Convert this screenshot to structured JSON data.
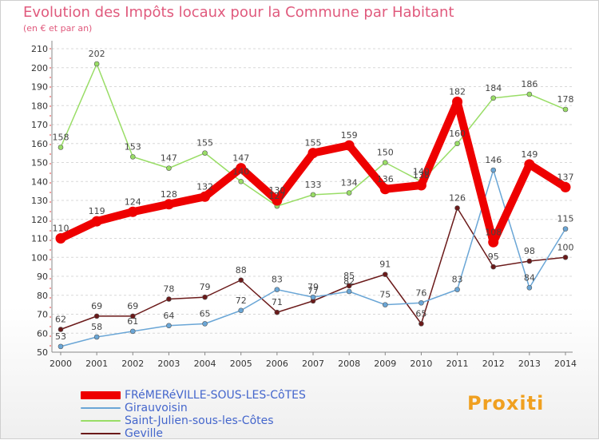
{
  "title": "Evolution des Impôts locaux pour la Commune par Habitant",
  "subtitle": "(en € et par an)",
  "brand": "Proxiti",
  "chart_data": {
    "type": "line",
    "x": [
      2000,
      2001,
      2002,
      2003,
      2004,
      2005,
      2006,
      2007,
      2008,
      2009,
      2010,
      2011,
      2012,
      2013,
      2014
    ],
    "xlabel": "",
    "ylabel": "",
    "ylim": [
      50,
      210
    ],
    "yticks": [
      50,
      60,
      70,
      80,
      90,
      100,
      110,
      120,
      130,
      140,
      150,
      160,
      170,
      180,
      190,
      200,
      210
    ],
    "grid": "horizontal dashed",
    "legend_position": "bottom",
    "series": [
      {
        "name": "FRéMERéVILLE-SOUS-LES-CôTES",
        "color": "#ee0000",
        "width": 10,
        "values": [
          110,
          119,
          124,
          128,
          132,
          147,
          130,
          155,
          159,
          136,
          138,
          182,
          108,
          149,
          137
        ]
      },
      {
        "name": "Girauvoisin",
        "color": "#6aa6d6",
        "width": 1.5,
        "values": [
          53,
          58,
          61,
          64,
          65,
          72,
          83,
          79,
          82,
          75,
          76,
          83,
          146,
          84,
          115
        ]
      },
      {
        "name": "Saint-Julien-sous-les-Côtes",
        "color": "#99dd66",
        "width": 1.5,
        "values": [
          158,
          202,
          153,
          147,
          155,
          140,
          127,
          133,
          134,
          150,
          140,
          160,
          184,
          186,
          178
        ]
      },
      {
        "name": "Geville",
        "color": "#6b1a1a",
        "width": 1.5,
        "values": [
          62,
          69,
          69,
          78,
          79,
          88,
          71,
          77,
          85,
          91,
          65,
          126,
          95,
          98,
          100
        ]
      }
    ]
  }
}
